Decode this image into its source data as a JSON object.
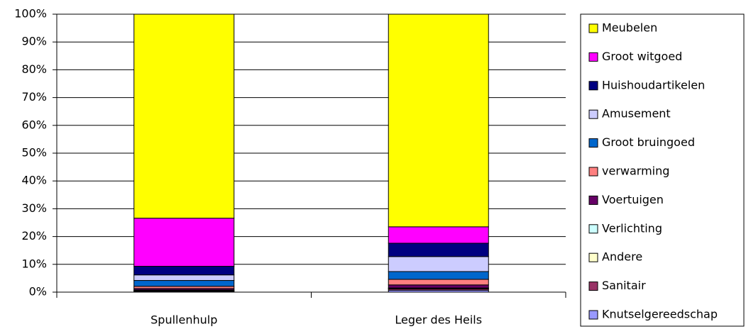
{
  "chart_data": {
    "type": "stacked_bar",
    "categories": [
      "Spullenhulp",
      "Leger des Heils"
    ],
    "series": [
      {
        "name": "Meubelen",
        "color": "#ffff00",
        "values": [
          73.4,
          76.5
        ]
      },
      {
        "name": "Groot witgoed",
        "color": "#ff00ff",
        "values": [
          17.3,
          5.9
        ]
      },
      {
        "name": "Huishoudartikelen",
        "color": "#000080",
        "values": [
          3.1,
          4.8
        ]
      },
      {
        "name": "Amusement",
        "color": "#ccccff",
        "values": [
          2.0,
          5.4
        ]
      },
      {
        "name": "Groot bruingoed",
        "color": "#0066cc",
        "values": [
          2.1,
          2.8
        ]
      },
      {
        "name": "verwarming",
        "color": "#ff8080",
        "values": [
          0.8,
          2.0
        ]
      },
      {
        "name": "Voertuigen",
        "color": "#660066",
        "values": [
          0.5,
          1.1
        ]
      },
      {
        "name": "Verlichting",
        "color": "#ccffff",
        "values": [
          0.2,
          0.2
        ]
      },
      {
        "name": "Andere",
        "color": "#ffffcc",
        "values": [
          0.1,
          0.1
        ]
      },
      {
        "name": "Sanitair",
        "color": "#993366",
        "values": [
          0.2,
          0.5
        ]
      },
      {
        "name": "Knutselgereedschap",
        "color": "#9999ff",
        "values": [
          0.3,
          0.7
        ]
      }
    ],
    "ylim": [
      0,
      100
    ],
    "yticks": [
      {
        "value": 0,
        "label": "0%"
      },
      {
        "value": 10,
        "label": "10%"
      },
      {
        "value": 20,
        "label": "20%"
      },
      {
        "value": 30,
        "label": "30%"
      },
      {
        "value": 40,
        "label": "40%"
      },
      {
        "value": 50,
        "label": "50%"
      },
      {
        "value": 60,
        "label": "60%"
      },
      {
        "value": 70,
        "label": "70%"
      },
      {
        "value": 80,
        "label": "80%"
      },
      {
        "value": 90,
        "label": "90%"
      },
      {
        "value": 100,
        "label": "100%"
      }
    ],
    "grid": true,
    "legend": "right"
  }
}
